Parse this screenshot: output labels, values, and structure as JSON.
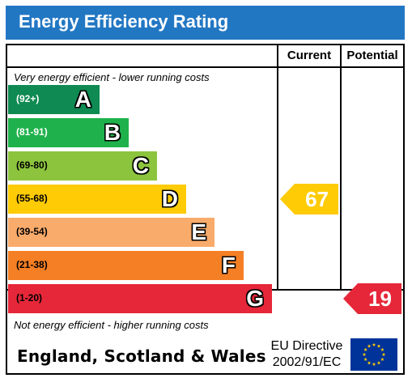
{
  "title": "Energy Efficiency Rating",
  "headers": {
    "current": "Current",
    "potential": "Potential"
  },
  "top_note": "Very energy efficient - lower running costs",
  "bottom_note": "Not energy efficient - higher running costs",
  "footer": {
    "country": "England, Scotland & Wales",
    "directive_line1": "EU Directive",
    "directive_line2": "2002/91/EC"
  },
  "chart_data": {
    "type": "bar",
    "bands": [
      {
        "range": "(92+)",
        "letter": "A",
        "color": "#0e8a52",
        "range_color": "#ffffff"
      },
      {
        "range": "(81-91)",
        "letter": "B",
        "color": "#1fb24c",
        "range_color": "#ffffff"
      },
      {
        "range": "(69-80)",
        "letter": "C",
        "color": "#8cc43e",
        "range_color": "#000000"
      },
      {
        "range": "(55-68)",
        "letter": "D",
        "color": "#fecb05",
        "range_color": "#000000"
      },
      {
        "range": "(39-54)",
        "letter": "E",
        "color": "#f9ab6b",
        "range_color": "#000000"
      },
      {
        "range": "(21-38)",
        "letter": "F",
        "color": "#f47f24",
        "range_color": "#000000"
      },
      {
        "range": "(1-20)",
        "letter": "G",
        "color": "#e62739",
        "range_color": "#000000"
      }
    ],
    "current": {
      "value": 67,
      "band": "D",
      "color": "#fecb05"
    },
    "potential": {
      "value": 19,
      "band": "G",
      "color": "#e62739"
    }
  }
}
